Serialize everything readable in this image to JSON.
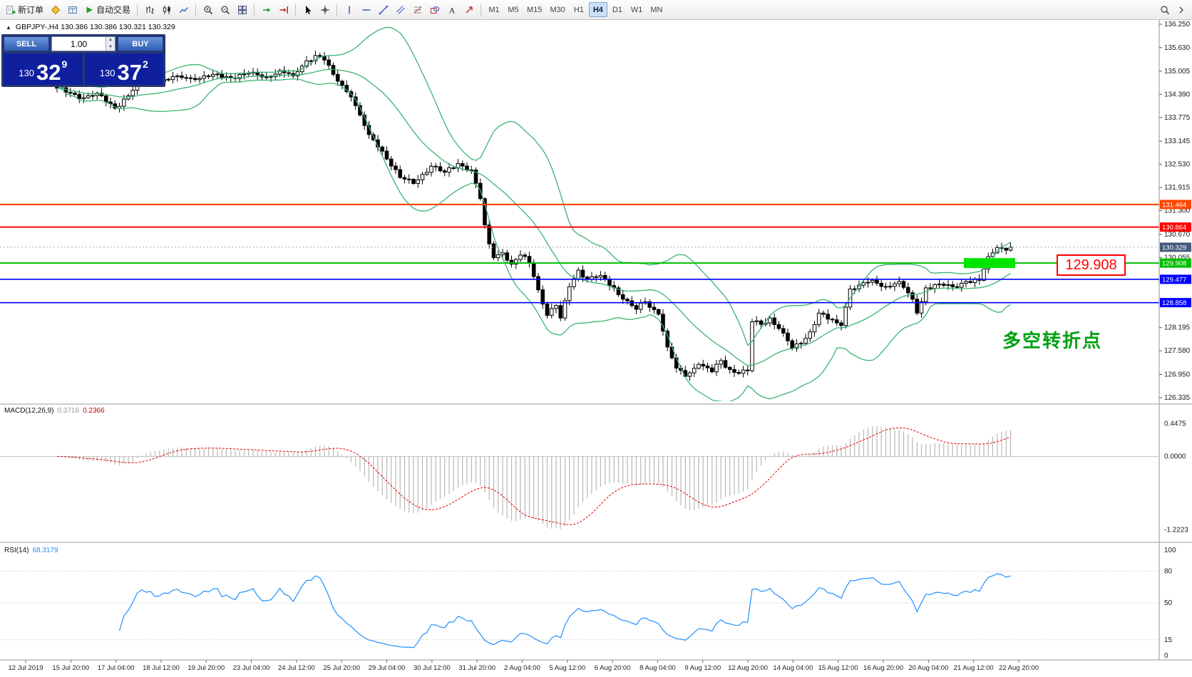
{
  "toolbar": {
    "groups": [
      {
        "items": [
          {
            "name": "new-order-button",
            "icon": "new-order",
            "label": "新订单"
          },
          {
            "name": "metaeditor-button",
            "icon": "metaeditor"
          },
          {
            "name": "terminal-button",
            "icon": "terminal"
          },
          {
            "name": "autotrading-button",
            "icon": "autotrading",
            "label": "自动交易"
          }
        ]
      },
      {
        "items": [
          {
            "name": "bar-chart-button",
            "icon": "bar-chart"
          },
          {
            "name": "candle-chart-button",
            "icon": "candle-chart"
          },
          {
            "name": "line-chart-button",
            "icon": "line-chart"
          }
        ]
      },
      {
        "items": [
          {
            "name": "zoom-in-button",
            "icon": "zoom-in"
          },
          {
            "name": "zoom-out-button",
            "icon": "zoom-out"
          },
          {
            "name": "tile-windows-button",
            "icon": "tile-windows"
          }
        ]
      },
      {
        "items": [
          {
            "name": "auto-scroll-button",
            "icon": "auto-scroll"
          },
          {
            "name": "chart-shift-button",
            "icon": "chart-shift"
          }
        ]
      },
      {
        "items": [
          {
            "name": "cursor-button",
            "icon": "cursor"
          },
          {
            "name": "crosshair-button",
            "icon": "crosshair"
          }
        ]
      },
      {
        "items": [
          {
            "name": "vertical-line-button",
            "icon": "vertical-line"
          },
          {
            "name": "horizontal-line-button",
            "icon": "horizontal-line"
          },
          {
            "name": "trendline-button",
            "icon": "trendline"
          },
          {
            "name": "channel-button",
            "icon": "channel"
          },
          {
            "name": "fibonacci-button",
            "icon": "fibonacci"
          },
          {
            "name": "shapes-button",
            "icon": "shapes"
          },
          {
            "name": "text-tool-button",
            "icon": "text-tool"
          },
          {
            "name": "arrow-tool-button",
            "icon": "arrow-tool"
          }
        ]
      }
    ],
    "timeframes": {
      "items": [
        "M1",
        "M5",
        "M15",
        "M30",
        "H1",
        "H4",
        "D1",
        "W1",
        "MN"
      ],
      "active": "H4"
    },
    "right_items": [
      {
        "name": "search-button",
        "icon": "search"
      },
      {
        "name": "toolbar-more-button",
        "icon": "more"
      }
    ]
  },
  "symbol": {
    "header": "GBPJPY-,H4  130.386 130.386 130.321 130.329"
  },
  "trade_panel": {
    "sell_label": "SELL",
    "buy_label": "BUY",
    "volume": "1.00",
    "sell_price": {
      "prefix": "130",
      "big": "32",
      "sup": "9"
    },
    "buy_price": {
      "prefix": "130",
      "big": "37",
      "sup": "2"
    }
  },
  "chart_data": {
    "type": "candlestick",
    "symbol": "GBPJPY-",
    "timeframe": "H4",
    "main": {
      "price_max": 136.326,
      "price_min": 126.24,
      "axis_ticks": [
        "136.250",
        "135.630",
        "135.005",
        "134.390",
        "133.775",
        "133.145",
        "132.530",
        "131.915",
        "131.300",
        "130.670",
        "130.055",
        "128.195",
        "127.580",
        "126.950",
        "126.335"
      ],
      "candles": {
        "count": 215,
        "close_waypoints": [
          [
            0,
            134.55
          ],
          [
            3,
            134.42
          ],
          [
            6,
            134.3
          ],
          [
            9,
            134.42
          ],
          [
            13,
            134.02
          ],
          [
            16,
            134.35
          ],
          [
            19,
            134.82
          ],
          [
            23,
            134.72
          ],
          [
            27,
            134.88
          ],
          [
            31,
            134.78
          ],
          [
            35,
            134.92
          ],
          [
            39,
            134.83
          ],
          [
            43,
            134.95
          ],
          [
            47,
            134.85
          ],
          [
            50,
            135.02
          ],
          [
            53,
            134.88
          ],
          [
            56,
            135.28
          ],
          [
            58,
            135.42
          ],
          [
            60,
            135.3
          ],
          [
            62,
            134.92
          ],
          [
            66,
            134.32
          ],
          [
            70,
            133.32
          ],
          [
            73,
            132.88
          ],
          [
            77,
            132.18
          ],
          [
            80,
            132.02
          ],
          [
            84,
            132.48
          ],
          [
            87,
            132.32
          ],
          [
            90,
            132.55
          ],
          [
            93,
            132.38
          ],
          [
            95,
            131.62
          ],
          [
            96,
            130.92
          ],
          [
            97,
            130.42
          ],
          [
            98,
            130.05
          ],
          [
            100,
            130.18
          ],
          [
            102,
            129.88
          ],
          [
            104,
            130.12
          ],
          [
            106,
            129.92
          ],
          [
            107,
            129.55
          ],
          [
            109,
            128.82
          ],
          [
            110,
            128.52
          ],
          [
            112,
            128.78
          ],
          [
            113,
            128.45
          ],
          [
            115,
            129.28
          ],
          [
            117,
            129.72
          ],
          [
            119,
            129.48
          ],
          [
            122,
            129.58
          ],
          [
            125,
            129.25
          ],
          [
            127,
            128.95
          ],
          [
            130,
            128.68
          ],
          [
            132,
            128.88
          ],
          [
            135,
            128.55
          ],
          [
            137,
            127.68
          ],
          [
            139,
            127.12
          ],
          [
            141,
            126.9
          ],
          [
            144,
            127.22
          ],
          [
            147,
            127.02
          ],
          [
            149,
            127.32
          ],
          [
            151,
            127.08
          ],
          [
            153,
            126.98
          ],
          [
            155,
            127.05
          ],
          [
            156,
            128.35
          ],
          [
            158,
            128.28
          ],
          [
            160,
            128.45
          ],
          [
            163,
            128.05
          ],
          [
            165,
            127.65
          ],
          [
            167,
            127.78
          ],
          [
            169,
            128.08
          ],
          [
            171,
            128.58
          ],
          [
            173,
            128.42
          ],
          [
            176,
            128.25
          ],
          [
            178,
            129.22
          ],
          [
            180,
            129.32
          ],
          [
            183,
            129.45
          ],
          [
            186,
            129.28
          ],
          [
            189,
            129.42
          ],
          [
            192,
            128.95
          ],
          [
            193,
            128.58
          ],
          [
            195,
            129.25
          ],
          [
            198,
            129.35
          ],
          [
            201,
            129.28
          ],
          [
            204,
            129.42
          ],
          [
            207,
            129.45
          ],
          [
            209,
            130.08
          ],
          [
            211,
            130.32
          ],
          [
            213,
            130.25
          ],
          [
            214,
            130.329
          ]
        ]
      },
      "bollinger": {
        "period": 20,
        "deviation": 2,
        "color": "#3CB371"
      },
      "hlines": [
        {
          "price": 131.464,
          "label": "131.464",
          "color": "#FF4500",
          "width": 2.2
        },
        {
          "price": 130.864,
          "label": "130.864",
          "color": "#FF0000",
          "width": 2
        },
        {
          "price": 129.908,
          "label": "129.908",
          "color": "#00BE00",
          "width": 2
        },
        {
          "price": 129.477,
          "label": "129.477",
          "color": "#0000FF",
          "width": 1.6
        },
        {
          "price": 128.858,
          "label": "128.858",
          "color": "#0000FF",
          "width": 1.6
        }
      ],
      "current_price": {
        "value": 130.329,
        "label": "130.329",
        "tag_bg": "#44597C"
      },
      "highlight_rect": {
        "price": 129.908,
        "color": "#00E400"
      },
      "callout": {
        "text": "129.908",
        "color": "#FF0000"
      },
      "note": {
        "text": "多空转折点",
        "color": "#00A010"
      }
    },
    "macd": {
      "label": "MACD(12,26,9)",
      "value_main": "0.3716",
      "value_signal": "0.2366",
      "axis_labels": [
        "0.4475",
        "0.0000",
        "-1.2223"
      ],
      "histogram_color": "#B8B8B8",
      "signal_color": "#E00000"
    },
    "rsi": {
      "label": "RSI(14)",
      "value": "68.3179",
      "levels": [
        80,
        50,
        15
      ],
      "axis_labels": [
        "100",
        "80",
        "50",
        "15",
        "0"
      ],
      "line_color": "#1E90FF"
    },
    "time_axis": [
      "12 Jul 2019",
      "15 Jul 20:00",
      "17 Jul 04:00",
      "18 Jul 12:00",
      "19 Jul 20:00",
      "23 Jul 04:00",
      "24 Jul 12:00",
      "25 Jul 20:00",
      "29 Jul 04:00",
      "30 Jul 12:00",
      "31 Jul 20:00",
      "2 Aug 04:00",
      "5 Aug 12:00",
      "6 Aug 20:00",
      "8 Aug 04:00",
      "9 Aug 12:00",
      "12 Aug 20:00",
      "14 Aug 04:00",
      "15 Aug 12:00",
      "16 Aug 20:00",
      "20 Aug 04:00",
      "21 Aug 12:00",
      "22 Aug 20:00"
    ]
  }
}
